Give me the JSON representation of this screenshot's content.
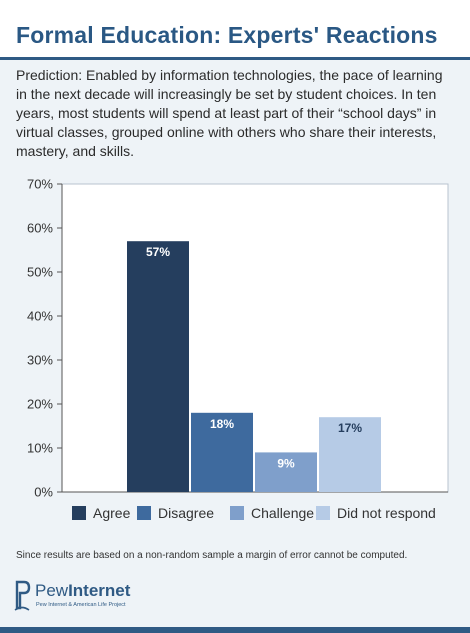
{
  "title": "Formal Education: Experts' Reactions",
  "prediction": "Prediction: Enabled by information technologies, the pace of learning in the next decade will increasingly be set by student choices. In ten years, most students will spend at least part of their “school days” in virtual classes, grouped online with others who share their interests, mastery, and skills.",
  "footnote": "Since results are based on a non-random sample a margin of error cannot be computed.",
  "logo": {
    "name_part1": "Pew",
    "name_part2": "Internet",
    "subtitle": "Pew Internet & American Life Project"
  },
  "colors": {
    "agree": "#253e5e",
    "disagree": "#3e6a9e",
    "challenge": "#7f9fcb",
    "did_not_respond": "#b6cbe6",
    "title": "#2a5884"
  },
  "chart_data": {
    "type": "bar",
    "categories": [
      "Agree",
      "Disagree",
      "Challenge",
      "Did not respond"
    ],
    "values": [
      57,
      18,
      9,
      17
    ],
    "data_labels": [
      "57%",
      "18%",
      "9%",
      "17%"
    ],
    "ylim": [
      0,
      70
    ],
    "yticks": [
      0,
      10,
      20,
      30,
      40,
      50,
      60,
      70
    ],
    "ytick_labels": [
      "0%",
      "10%",
      "20%",
      "30%",
      "40%",
      "50%",
      "60%",
      "70%"
    ],
    "legend_position": "bottom",
    "grid": false
  }
}
